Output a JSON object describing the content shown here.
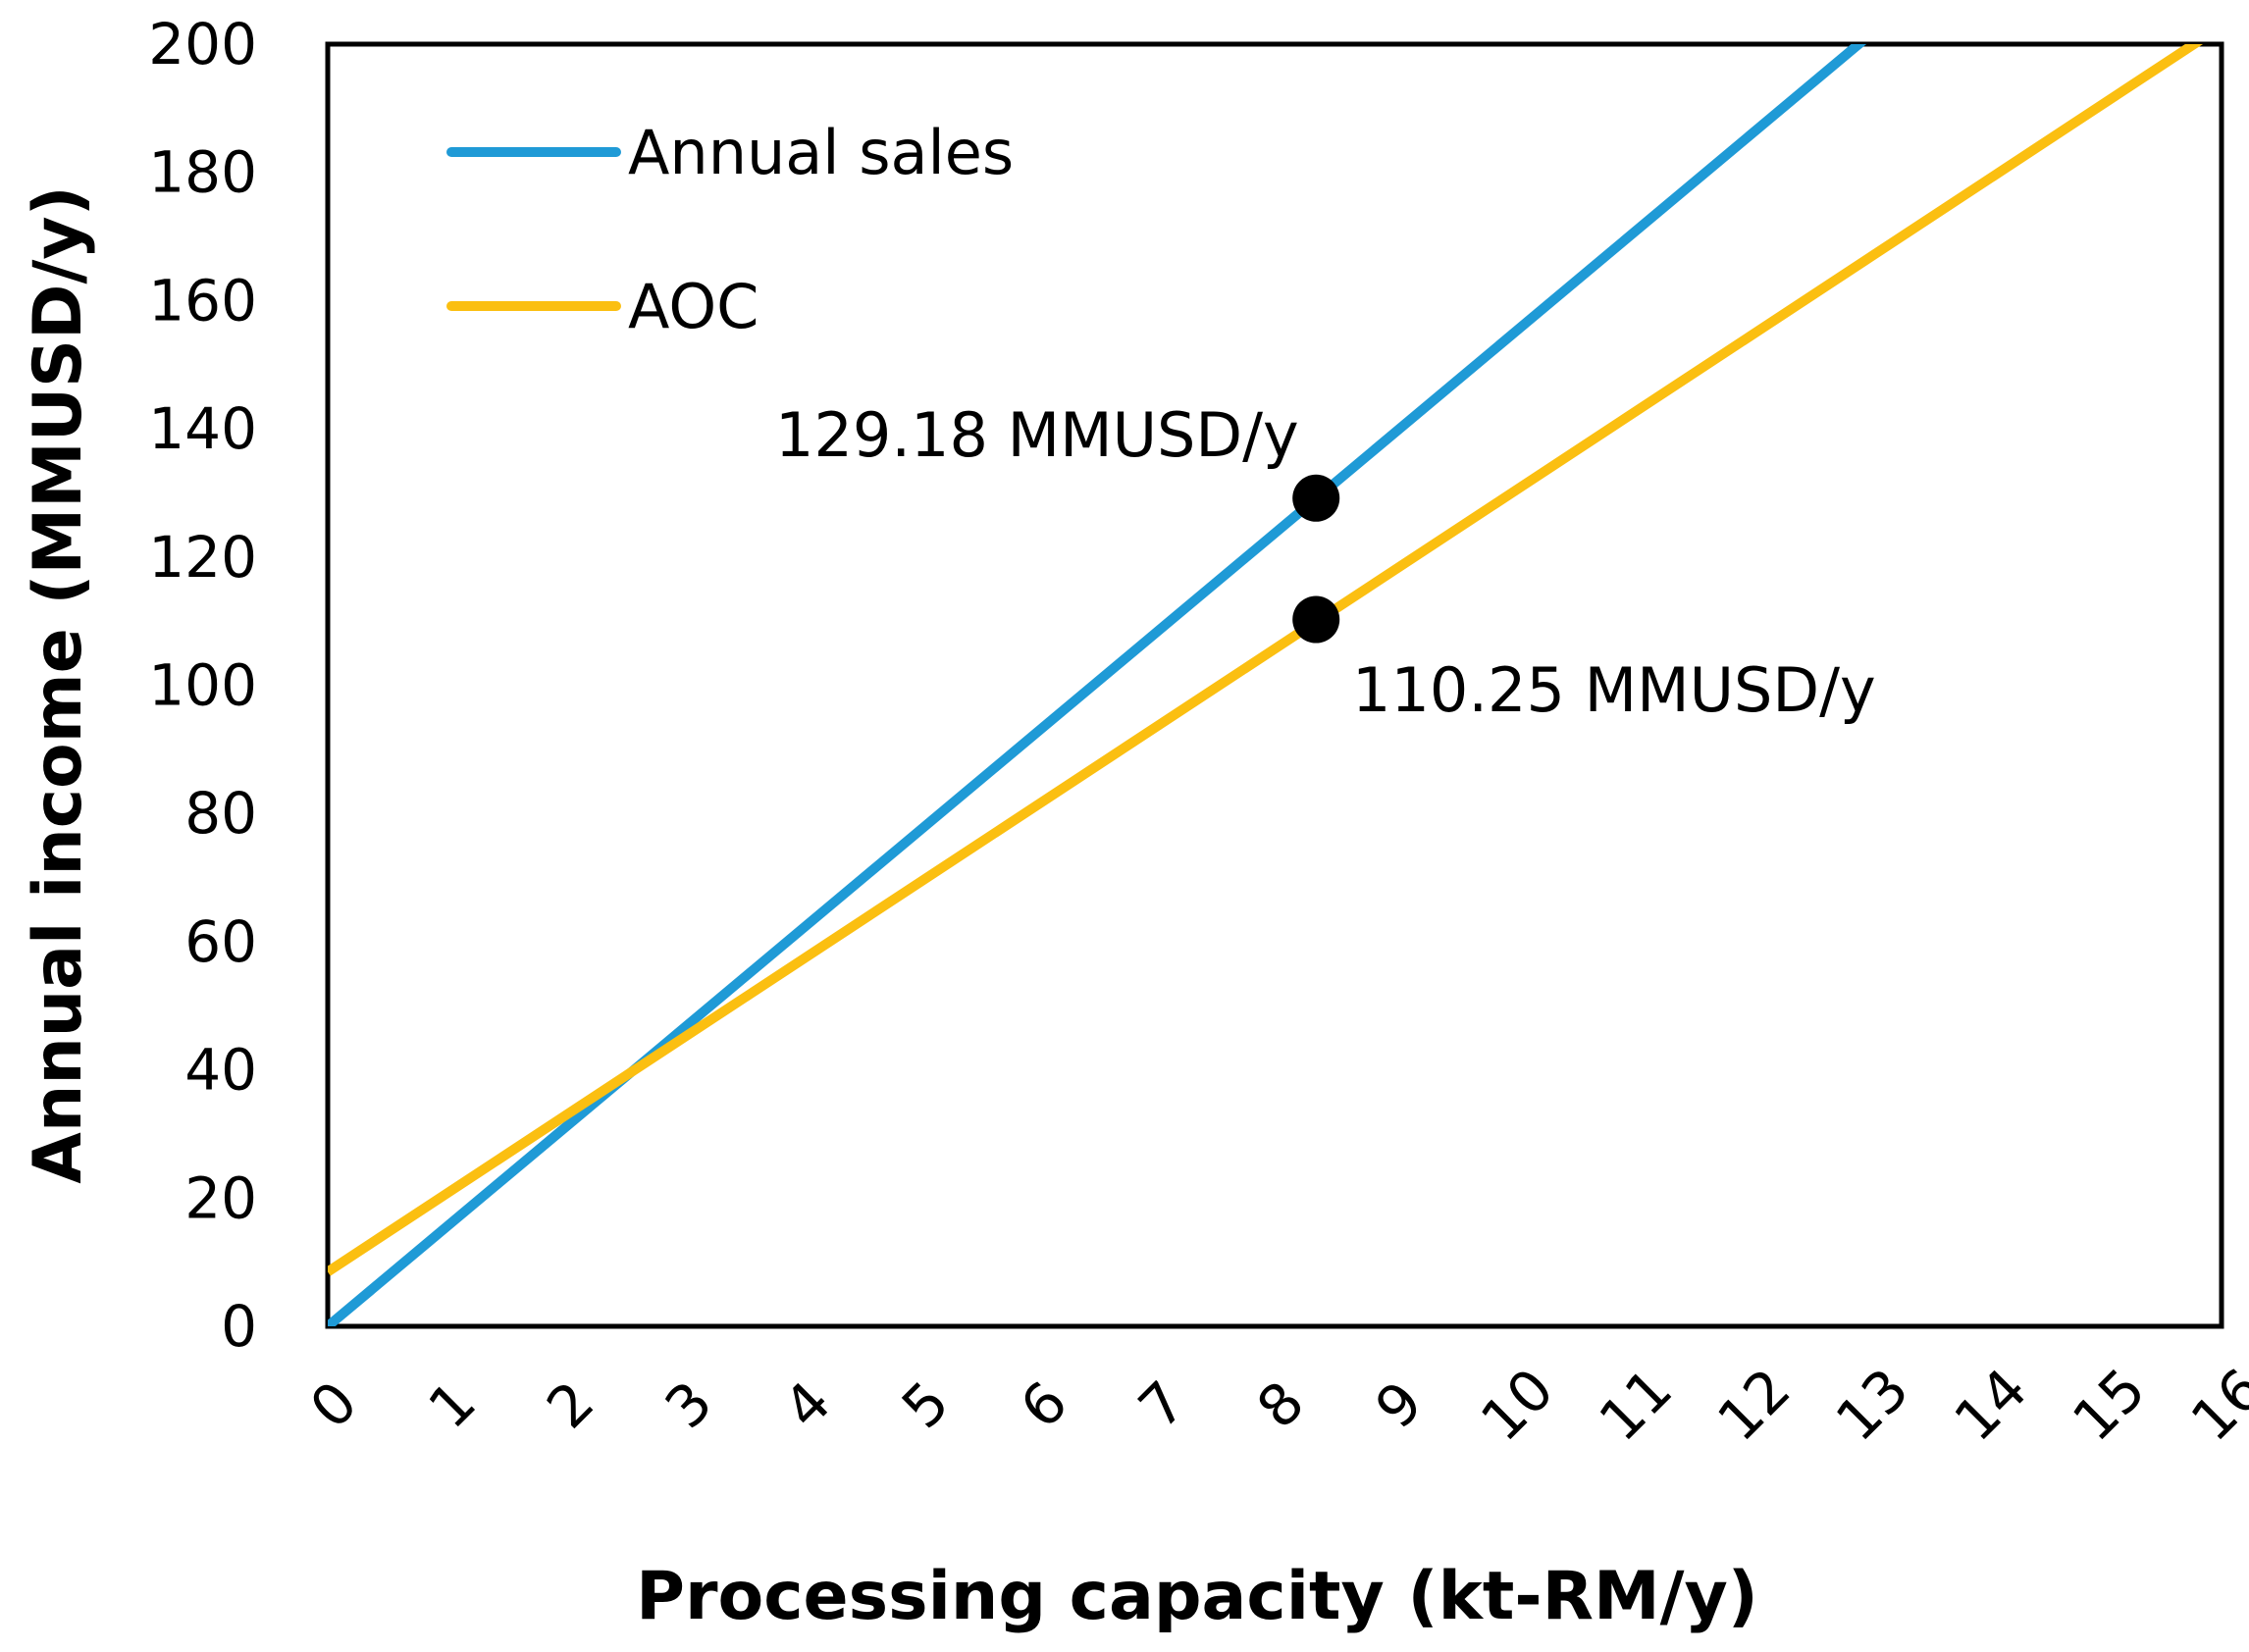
{
  "chart_data": {
    "type": "line",
    "title": "",
    "xlabel": "Processing capacity (kt-RM/y)",
    "ylabel": "Annual income (MMUSD/y)",
    "xlim": [
      0,
      16
    ],
    "ylim": [
      0,
      200
    ],
    "x_ticks": [
      "0",
      "1",
      "2",
      "3",
      "4",
      "5",
      "6",
      "7",
      "8",
      "9",
      "10",
      "11",
      "12",
      "13",
      "14",
      "15",
      "16"
    ],
    "y_ticks": [
      "0",
      "20",
      "40",
      "60",
      "80",
      "100",
      "120",
      "140",
      "160",
      "180",
      "200"
    ],
    "grid": false,
    "legend_position": "top-left",
    "series": [
      {
        "name": "Annual sales",
        "color": "#1f9ad6",
        "x": [
          0,
          13
        ],
        "y": [
          0,
          201
        ]
      },
      {
        "name": "AOC",
        "color": "#fbbf11",
        "x": [
          0,
          15.85
        ],
        "y": [
          8.5,
          201
        ]
      }
    ],
    "points": [
      {
        "x": 8.35,
        "y": 129.18,
        "label": "129.18 MMUSD/y",
        "color": "#000000"
      },
      {
        "x": 8.35,
        "y": 110.25,
        "label": "110.25 MMUSD/y",
        "color": "#000000"
      }
    ]
  }
}
